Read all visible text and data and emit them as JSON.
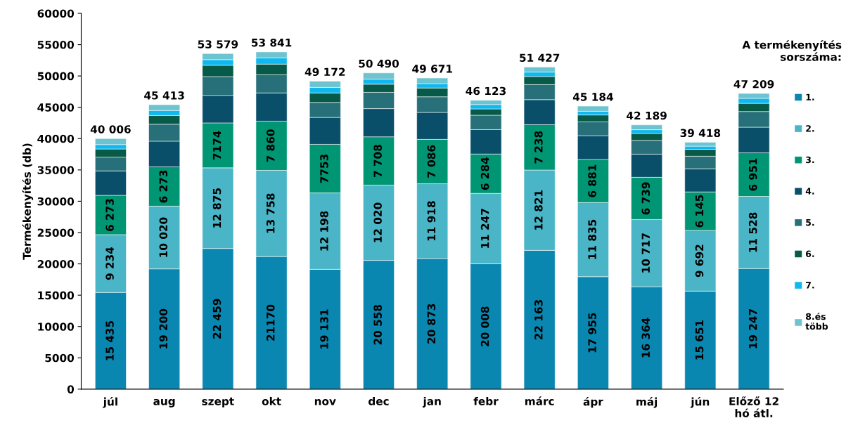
{
  "chart_data": {
    "type": "bar",
    "stacked": true,
    "ylabel": "Termékenyítés (db)",
    "legend_title": "A termékenyítés sorszáma:",
    "legend": "right",
    "grid": false,
    "categories": [
      "júl",
      "aug",
      "szept",
      "okt",
      "nov",
      "dec",
      "jan",
      "febr",
      "márc",
      "ápr",
      "máj",
      "jún",
      "Előző 12\nhó átl."
    ],
    "ylim": [
      0,
      60000
    ],
    "yticks": [
      0,
      5000,
      10000,
      15000,
      20000,
      25000,
      30000,
      35000,
      40000,
      45000,
      50000,
      55000,
      60000
    ],
    "series": [
      {
        "name": "1.",
        "color": "#0a87b0",
        "values": [
          15435,
          19200,
          22459,
          21170,
          19131,
          20558,
          20873,
          20008,
          22163,
          17955,
          16364,
          15651,
          19247
        ],
        "value_labels": [
          "15 435",
          "19 200",
          "22 459",
          "21170",
          "19 131",
          "20 558",
          "20 873",
          "20 008",
          "22 163",
          "17 955",
          "16 364",
          "15 651",
          "19 247"
        ]
      },
      {
        "name": "2.",
        "color": "#4ab5c6",
        "values": [
          9234,
          10020,
          12875,
          13758,
          12198,
          12020,
          11918,
          11247,
          12821,
          11835,
          10717,
          9692,
          11528
        ],
        "value_labels": [
          "9 234",
          "10 020",
          "12 875",
          "13 758",
          "12 198",
          "12 020",
          "11 918",
          "11 247",
          "12 821",
          "11 835",
          "10 717",
          "9 692",
          "11 528"
        ]
      },
      {
        "name": "3.",
        "color": "#009673",
        "values": [
          6273,
          6273,
          7174,
          7860,
          7753,
          7708,
          7086,
          6284,
          7238,
          6881,
          6739,
          6145,
          6951
        ],
        "value_labels": [
          "6 273",
          "6 273",
          "7174",
          "7 860",
          "7753",
          "7 708",
          "7 086",
          "6 284",
          "7 238",
          "6 881",
          "6 739",
          "6 145",
          "6 951"
        ]
      },
      {
        "name": "4.",
        "color": "#0a4f6a",
        "values": [
          3900,
          4100,
          4400,
          4500,
          4300,
          4500,
          4300,
          3900,
          4000,
          3800,
          3700,
          3700,
          4100
        ]
      },
      {
        "name": "5.",
        "color": "#27707a",
        "values": [
          2200,
          2700,
          3000,
          2900,
          2400,
          2600,
          2500,
          2300,
          2400,
          2200,
          2200,
          2000,
          2500
        ]
      },
      {
        "name": "6.",
        "color": "#075a48",
        "values": [
          1300,
          1400,
          1800,
          1700,
          1500,
          1300,
          1400,
          1000,
          1300,
          1100,
          1100,
          1100,
          1300
        ]
      },
      {
        "name": "7.",
        "color": "#0fb9ef",
        "values": [
          700,
          800,
          900,
          1000,
          900,
          800,
          700,
          700,
          700,
          600,
          600,
          500,
          800
        ]
      },
      {
        "name": "8.és\ntöbb",
        "color": "#6ec3d0",
        "values": [
          964,
          920,
          971,
          953,
          990,
          1004,
          894,
          684,
          805,
          813,
          769,
          630,
          783
        ]
      }
    ],
    "totals": [
      "40 006",
      "45 413",
      "53 579",
      "53 841",
      "49 172",
      "50 490",
      "49 671",
      "46 123",
      "51 427",
      "45 184",
      "42 189",
      "39 418",
      "47 209"
    ]
  }
}
